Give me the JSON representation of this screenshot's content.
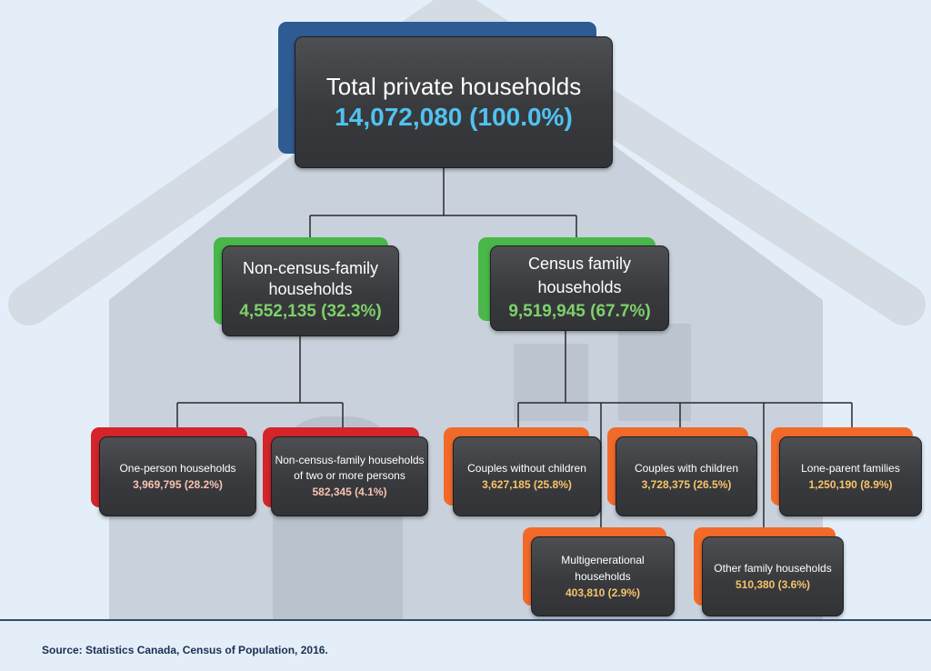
{
  "colors": {
    "blue_accent": "#2f5b93",
    "green_accent": "#49b749",
    "red_accent": "#d6242b",
    "orange_accent": "#f26a2a",
    "value_blue": "#4fc3f0",
    "value_green": "#7ed06a",
    "value_pink": "#f8c3b0",
    "value_yellow": "#f6c46a"
  },
  "nodes": {
    "total": {
      "label": "Total private households",
      "value": "14,072,080 (100.0%)"
    },
    "non_census": {
      "label_line1": "Non-census-family",
      "label_line2": "households",
      "value": "4,552,135 (32.3%)"
    },
    "census": {
      "label": "Census family households",
      "value": "9,519,945 (67.7%)"
    },
    "one_person": {
      "label": "One-person households",
      "value": "3,969,795 (28.2%)"
    },
    "two_or_more": {
      "label_line1": "Non-census-family households",
      "label_line2": "of two or more persons",
      "value": "582,345 (4.1%)"
    },
    "couples_without": {
      "label": "Couples without children",
      "value": "3,627,185 (25.8%)"
    },
    "couples_with": {
      "label": "Couples with children",
      "value": "3,728,375 (26.5%)"
    },
    "lone_parent": {
      "label": "Lone-parent families",
      "value": "1,250,190 (8.9%)"
    },
    "multigenerational": {
      "label": "Multigenerational households",
      "value": "403,810 (2.9%)"
    },
    "other_family": {
      "label": "Other family households",
      "value": "510,380 (3.6%)"
    }
  },
  "source": "Source: Statistics Canada, Census of Population, 2016."
}
